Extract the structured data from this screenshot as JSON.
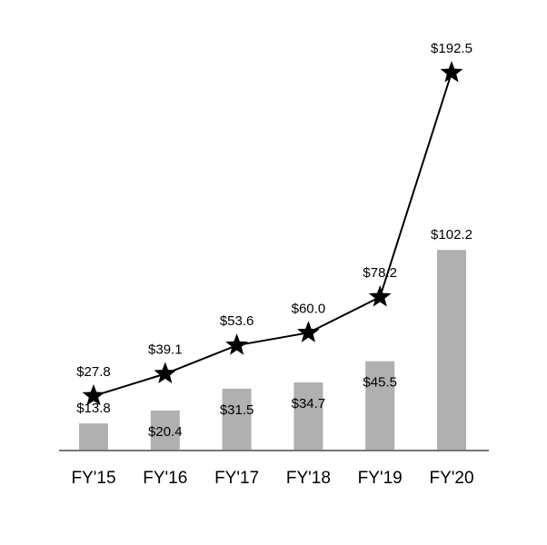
{
  "chart_data": {
    "type": "bar-line",
    "categories": [
      "FY'15",
      "FY'16",
      "FY'17",
      "FY'18",
      "FY'19",
      "FY'20"
    ],
    "series": [
      {
        "type": "bar",
        "color": "#b0b0b0",
        "values": [
          13.8,
          20.4,
          31.5,
          34.7,
          45.5,
          102.2
        ],
        "value_labels": [
          "$13.8",
          "$20.4",
          "$31.5",
          "$34.7",
          "$45.5",
          "$102.2"
        ]
      },
      {
        "type": "line",
        "color": "#000000",
        "marker": "star",
        "values": [
          27.8,
          39.1,
          53.6,
          60.0,
          78.2,
          192.5
        ],
        "value_labels": [
          "$27.8",
          "$39.1",
          "$53.6",
          "$60.0",
          "$78.2",
          "$192.5"
        ]
      }
    ]
  }
}
